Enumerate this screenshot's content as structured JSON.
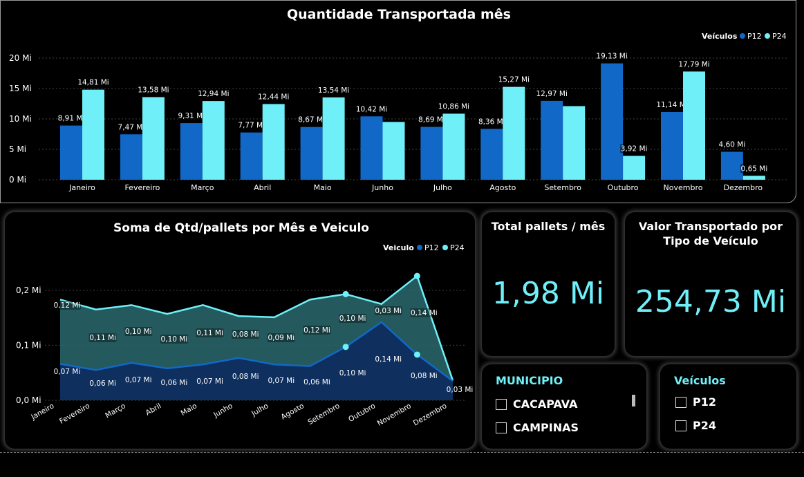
{
  "bar_chart": {
    "title": "Quantidade Transportada mês",
    "legend_title": "Veículos",
    "colors": {
      "P12": "#1168c7",
      "P24": "#6ff0f8"
    },
    "chart_data": {
      "type": "bar",
      "title": "Quantidade Transportada mês",
      "categories": [
        "Janeiro",
        "Fevereiro",
        "Março",
        "Abril",
        "Maio",
        "Junho",
        "Julho",
        "Agosto",
        "Setembro",
        "Outubro",
        "Novembro",
        "Dezembro"
      ],
      "series": [
        {
          "name": "P12",
          "values": [
            8.91,
            7.47,
            9.31,
            7.77,
            8.67,
            10.42,
            8.69,
            8.36,
            12.97,
            19.13,
            11.14,
            4.6
          ],
          "labels": [
            "8,91 Mi",
            "7,47 Mi",
            "9,31 Mi",
            "7,77 Mi",
            "8,67 Mi",
            "10,42 Mi",
            "8,69 Mi",
            "8,36 Mi",
            "12,97 Mi",
            "19,13 Mi",
            "11,14 Mi",
            "4,60 Mi"
          ]
        },
        {
          "name": "P24",
          "values": [
            14.81,
            13.58,
            12.94,
            12.44,
            13.54,
            9.5,
            10.86,
            15.27,
            12.1,
            3.92,
            17.79,
            0.65
          ],
          "labels": [
            "14,81 Mi",
            "13,58 Mi",
            "12,94 Mi",
            "12,44 Mi",
            "13,54 Mi",
            "",
            "10,86 Mi",
            "15,27 Mi",
            "",
            "3,92 Mi",
            "17,79 Mi",
            "0,65 Mi"
          ]
        }
      ],
      "yticks": [
        0,
        5,
        10,
        15,
        20
      ],
      "ytick_labels": [
        "0 Mi",
        "5 Mi",
        "10 Mi",
        "15 Mi",
        "20 Mi"
      ],
      "ylim": [
        0,
        20
      ],
      "grid": true,
      "legend": "top-right"
    }
  },
  "line_chart": {
    "title": "Soma de Qtd/pallets por Mês e Veiculo",
    "legend_title": "Veiculo",
    "colors": {
      "P12": "#1168c7",
      "P24": "#6ff0f8",
      "P12_fill": "#0f2f5e",
      "P24_fill": "#2a6a6e"
    },
    "chart_data": {
      "type": "area",
      "title": "Soma de Qtd/pallets por Mês e Veiculo",
      "categories": [
        "Janeiro",
        "Fevereiro",
        "Março",
        "Abril",
        "Maio",
        "Junho",
        "Julho",
        "Agosto",
        "Setembro",
        "Outubro",
        "Novembro",
        "Dezembro"
      ],
      "series": [
        {
          "name": "P12",
          "values": [
            0.066,
            0.055,
            0.068,
            0.058,
            0.065,
            0.077,
            0.065,
            0.062,
            0.097,
            0.142,
            0.083,
            0.035
          ],
          "labels": [
            "0,07 Mi",
            "0,06 Mi",
            "0,07 Mi",
            "0,06 Mi",
            "0,07 Mi",
            "0,08 Mi",
            "0,07 Mi",
            "0,06 Mi",
            "0,10 Mi",
            "0,14 Mi",
            "0,08 Mi",
            "0,03 Mi"
          ]
        },
        {
          "name": "P24",
          "values": [
            0.183,
            0.165,
            0.173,
            0.157,
            0.173,
            0.153,
            0.151,
            0.183,
            0.193,
            0.175,
            0.226,
            0.036
          ],
          "labels": [
            "0,12 Mi",
            "0,11 Mi",
            "0,10 Mi",
            "0,10 Mi",
            "0,11 Mi",
            "0,08 Mi",
            "0,09 Mi",
            "0,12 Mi",
            "0,10 Mi",
            "0,03 Mi",
            "0,14 Mi",
            ""
          ]
        }
      ],
      "stacked": false,
      "yticks": [
        0,
        0.1,
        0.2
      ],
      "ytick_labels": [
        "0,0 Mi",
        "0,1 Mi",
        "0,2 Mi"
      ],
      "ylim": [
        0,
        0.235
      ],
      "highlighted_points": {
        "P12": [
          8,
          10
        ],
        "P24": [
          8,
          10
        ]
      },
      "legend": "top-right"
    }
  },
  "card_pallets": {
    "title": "Total pallets / mês",
    "value": "1,98 Mi"
  },
  "card_valor": {
    "title_line1": "Valor Transportado por",
    "title_line2": "Tipo de Veículo",
    "value": "254,73 Mi"
  },
  "slicer_municipio": {
    "title": "MUNICIPIO",
    "items": [
      "CACAPAVA",
      "CAMPINAS"
    ]
  },
  "slicer_veiculos": {
    "title": "Veículos",
    "items": [
      "P12",
      "P24"
    ]
  }
}
